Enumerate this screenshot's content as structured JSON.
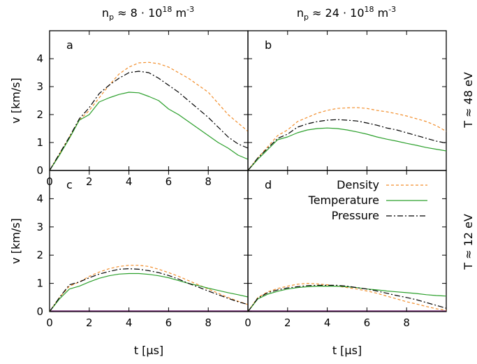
{
  "column_headers": [
    {
      "base": "n",
      "sub": "p",
      "mid": " ≈  8 · 10",
      "sup": "18",
      "tail": " m",
      "sup2": "-3"
    },
    {
      "base": "n",
      "sub": "p",
      "mid": " ≈ 24 · 10",
      "sup": "18",
      "tail": " m",
      "sup2": "-3"
    }
  ],
  "row_headers": [
    "T ≈ 48  eV",
    "T ≈ 12  eV"
  ],
  "legend_entries": [
    "Density",
    "Temperature",
    "Pressure"
  ],
  "colors": {
    "density": "#f28e2b",
    "temperature": "#2ca02c",
    "pressure": "#000000",
    "baseline": "#6b1d6b"
  },
  "chart_data": [
    {
      "type": "line",
      "panel": "a",
      "xlabel": "",
      "ylabel": "v [km/s]",
      "xlim": [
        0,
        10
      ],
      "ylim": [
        0,
        5
      ],
      "x_ticks": [
        "0",
        "2",
        "4",
        "6",
        "8"
      ],
      "y_ticks": [
        "0",
        "1",
        "2",
        "3",
        "4"
      ],
      "series": [
        {
          "name": "Density",
          "x": [
            0,
            0.5,
            1,
            1.5,
            2,
            2.5,
            3,
            3.5,
            4,
            4.5,
            5,
            5.5,
            6,
            6.5,
            7,
            7.5,
            8,
            8.5,
            9,
            9.5,
            10
          ],
          "y": [
            0,
            0.6,
            1.2,
            1.8,
            2.15,
            2.6,
            3.05,
            3.45,
            3.7,
            3.85,
            3.87,
            3.82,
            3.7,
            3.5,
            3.3,
            3.05,
            2.8,
            2.4,
            2.0,
            1.7,
            1.4
          ]
        },
        {
          "name": "Temperature",
          "x": [
            0,
            0.5,
            1,
            1.5,
            2,
            2.5,
            3,
            3.5,
            4,
            4.5,
            5,
            5.5,
            6,
            6.5,
            7,
            7.5,
            8,
            8.5,
            9,
            9.5,
            10
          ],
          "y": [
            0,
            0.55,
            1.15,
            1.8,
            2.0,
            2.45,
            2.6,
            2.72,
            2.8,
            2.78,
            2.65,
            2.5,
            2.2,
            2.0,
            1.75,
            1.5,
            1.25,
            1.0,
            0.8,
            0.55,
            0.4
          ]
        },
        {
          "name": "Pressure",
          "x": [
            0,
            0.5,
            1,
            1.5,
            2,
            2.5,
            3,
            3.5,
            4,
            4.5,
            5,
            5.5,
            6,
            6.5,
            7,
            7.5,
            8,
            8.5,
            9,
            9.5,
            10
          ],
          "y": [
            0,
            0.6,
            1.2,
            1.85,
            2.25,
            2.75,
            3.05,
            3.3,
            3.5,
            3.55,
            3.5,
            3.3,
            3.05,
            2.8,
            2.5,
            2.2,
            1.9,
            1.55,
            1.2,
            0.95,
            0.8
          ]
        }
      ]
    },
    {
      "type": "line",
      "panel": "b",
      "xlabel": "",
      "ylabel": "",
      "xlim": [
        0,
        10
      ],
      "ylim": [
        0,
        5
      ],
      "x_ticks": [],
      "y_ticks": [],
      "series": [
        {
          "name": "Density",
          "x": [
            0,
            0.5,
            1,
            1.5,
            2,
            2.5,
            3,
            3.5,
            4,
            4.5,
            5,
            5.5,
            6,
            6.5,
            7,
            7.5,
            8,
            8.5,
            9,
            9.5,
            10
          ],
          "y": [
            0,
            0.45,
            0.85,
            1.25,
            1.45,
            1.75,
            1.9,
            2.05,
            2.15,
            2.22,
            2.24,
            2.25,
            2.22,
            2.15,
            2.1,
            2.03,
            1.95,
            1.85,
            1.75,
            1.6,
            1.4
          ]
        },
        {
          "name": "Temperature",
          "x": [
            0,
            0.5,
            1,
            1.5,
            2,
            2.5,
            3,
            3.5,
            4,
            4.5,
            5,
            5.5,
            6,
            6.5,
            7,
            7.5,
            8,
            8.5,
            9,
            9.5,
            10
          ],
          "y": [
            0,
            0.4,
            0.75,
            1.1,
            1.2,
            1.35,
            1.45,
            1.5,
            1.52,
            1.5,
            1.45,
            1.38,
            1.3,
            1.2,
            1.12,
            1.05,
            0.97,
            0.9,
            0.82,
            0.76,
            0.7
          ]
        },
        {
          "name": "Pressure",
          "x": [
            0,
            0.5,
            1,
            1.5,
            2,
            2.5,
            3,
            3.5,
            4,
            4.5,
            5,
            5.5,
            6,
            6.5,
            7,
            7.5,
            8,
            8.5,
            9,
            9.5,
            10
          ],
          "y": [
            0,
            0.45,
            0.8,
            1.15,
            1.3,
            1.55,
            1.67,
            1.75,
            1.8,
            1.82,
            1.8,
            1.77,
            1.7,
            1.62,
            1.52,
            1.45,
            1.35,
            1.25,
            1.15,
            1.05,
            0.98
          ]
        }
      ]
    },
    {
      "type": "line",
      "panel": "c",
      "xlabel": "t [µs]",
      "ylabel": "v [km/s]",
      "xlim": [
        0,
        10
      ],
      "ylim": [
        0,
        5
      ],
      "x_ticks": [
        "0",
        "2",
        "4",
        "6",
        "8"
      ],
      "y_ticks": [
        "0",
        "1",
        "2",
        "3",
        "4"
      ],
      "series": [
        {
          "name": "Density",
          "x": [
            0,
            0.5,
            1,
            1.5,
            2,
            2.5,
            3,
            3.5,
            4,
            4.5,
            5,
            5.5,
            6,
            6.5,
            7,
            7.5,
            8,
            8.5,
            9,
            9.5,
            10
          ],
          "y": [
            0,
            0.5,
            0.9,
            1.05,
            1.25,
            1.4,
            1.52,
            1.6,
            1.64,
            1.64,
            1.6,
            1.5,
            1.38,
            1.25,
            1.1,
            0.95,
            0.8,
            0.65,
            0.5,
            0.37,
            0.25
          ]
        },
        {
          "name": "Temperature",
          "x": [
            0,
            0.5,
            1,
            1.5,
            2,
            2.5,
            3,
            3.5,
            4,
            4.5,
            5,
            5.5,
            6,
            6.5,
            7,
            7.5,
            8,
            8.5,
            9,
            9.5,
            10
          ],
          "y": [
            0,
            0.45,
            0.8,
            0.9,
            1.05,
            1.18,
            1.27,
            1.33,
            1.35,
            1.35,
            1.32,
            1.27,
            1.2,
            1.1,
            1.0,
            0.92,
            0.83,
            0.75,
            0.67,
            0.6,
            0.52
          ]
        },
        {
          "name": "Pressure",
          "x": [
            0,
            0.5,
            1,
            1.5,
            2,
            2.5,
            3,
            3.5,
            4,
            4.5,
            5,
            5.5,
            6,
            6.5,
            7,
            7.5,
            8,
            8.5,
            9,
            9.5,
            10
          ],
          "y": [
            0,
            0.5,
            0.95,
            1.05,
            1.2,
            1.33,
            1.42,
            1.5,
            1.52,
            1.5,
            1.45,
            1.38,
            1.28,
            1.15,
            1.0,
            0.87,
            0.73,
            0.6,
            0.47,
            0.35,
            0.25
          ]
        }
      ]
    },
    {
      "type": "line",
      "panel": "d",
      "xlabel": "t [µs]",
      "ylabel": "",
      "xlim": [
        0,
        10
      ],
      "ylim": [
        0,
        5
      ],
      "x_ticks": [
        "0",
        "2",
        "4",
        "6",
        "8"
      ],
      "y_ticks": [],
      "series": [
        {
          "name": "Density",
          "x": [
            0,
            0.5,
            1,
            1.5,
            2,
            2.5,
            3,
            3.5,
            4,
            4.5,
            5,
            5.5,
            6,
            6.5,
            7,
            7.5,
            8,
            8.5,
            9,
            9.5,
            10
          ],
          "y": [
            0,
            0.5,
            0.7,
            0.82,
            0.9,
            0.97,
            1.0,
            0.98,
            0.95,
            0.9,
            0.85,
            0.8,
            0.73,
            0.65,
            0.55,
            0.45,
            0.35,
            0.27,
            0.18,
            0.1,
            0.05
          ]
        },
        {
          "name": "Temperature",
          "x": [
            0,
            0.5,
            1,
            1.5,
            2,
            2.5,
            3,
            3.5,
            4,
            4.5,
            5,
            5.5,
            6,
            6.5,
            7,
            7.5,
            8,
            8.5,
            9,
            9.5,
            10
          ],
          "y": [
            0,
            0.45,
            0.62,
            0.72,
            0.8,
            0.85,
            0.88,
            0.9,
            0.9,
            0.9,
            0.88,
            0.85,
            0.8,
            0.77,
            0.73,
            0.7,
            0.67,
            0.64,
            0.6,
            0.57,
            0.55
          ]
        },
        {
          "name": "Pressure",
          "x": [
            0,
            0.5,
            1,
            1.5,
            2,
            2.5,
            3,
            3.5,
            4,
            4.5,
            5,
            5.5,
            6,
            6.5,
            7,
            7.5,
            8,
            8.5,
            9,
            9.5,
            10
          ],
          "y": [
            0,
            0.48,
            0.67,
            0.77,
            0.84,
            0.88,
            0.92,
            0.93,
            0.93,
            0.93,
            0.9,
            0.85,
            0.8,
            0.73,
            0.65,
            0.57,
            0.5,
            0.42,
            0.32,
            0.22,
            0.12
          ]
        }
      ]
    }
  ]
}
